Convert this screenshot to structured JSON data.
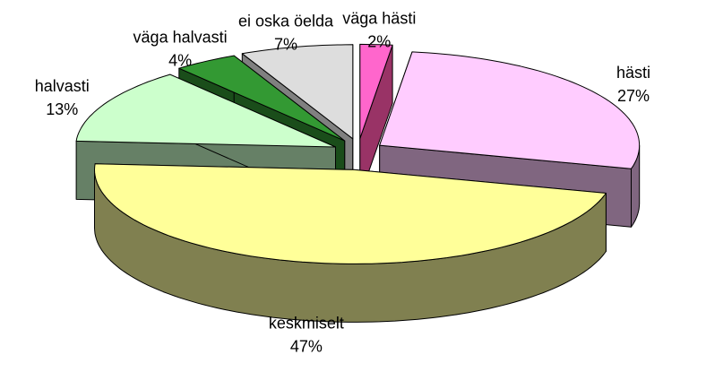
{
  "chart_data": {
    "type": "pie3d",
    "categories": [
      "väga hästi",
      "hästi",
      "keskmiselt",
      "halvasti",
      "väga halvasti",
      "ei oska öelda"
    ],
    "values": [
      2,
      27,
      47,
      13,
      4,
      7
    ],
    "value_labels": [
      "2%",
      "27%",
      "47%",
      "13%",
      "4%",
      "7%"
    ],
    "colors": [
      "#ff66cc",
      "#ffccff",
      "#ffff99",
      "#ccffcc",
      "#339933",
      "#dddddd"
    ],
    "side_colors": [
      "#993366",
      "#806680",
      "#808050",
      "#668066",
      "#1a4d1a",
      "#808080"
    ]
  }
}
